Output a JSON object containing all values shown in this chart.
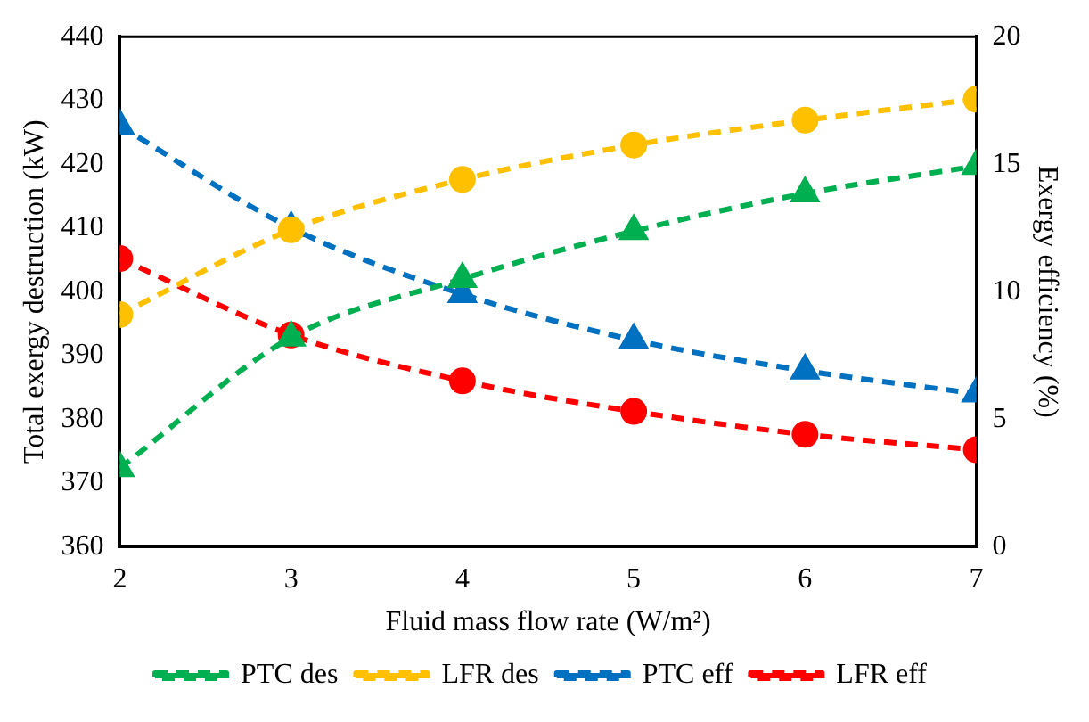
{
  "chart_data": {
    "type": "line",
    "xlabel": "Fluid mass flow rate (W/m²)",
    "ylabel": "Total exergy destruction (kW)",
    "y2label": "Exergy efficiency (%)",
    "x": [
      2,
      3,
      4,
      5,
      6,
      7
    ],
    "xlim": [
      2,
      7
    ],
    "xticks": [
      2,
      3,
      4,
      5,
      6,
      7
    ],
    "ylim": [
      360,
      440
    ],
    "yticks": [
      360,
      370,
      380,
      390,
      400,
      410,
      420,
      430,
      440
    ],
    "y2lim": [
      0,
      20
    ],
    "y2ticks": [
      0,
      5,
      10,
      15,
      20
    ],
    "grid": false,
    "legend": "bottom",
    "line_style": "dashed",
    "series": [
      {
        "name": "PTC des",
        "color": "#00b050",
        "marker": "triangle",
        "values": [
          372.3,
          392.8,
          402,
          409.5,
          415.4,
          419.7
        ]
      },
      {
        "name": "LFR des",
        "color": "#ffc000",
        "marker": "circle",
        "values": [
          396.4,
          409.7,
          417.6,
          423,
          426.9,
          430.2
        ]
      },
      {
        "name": "PTC eff",
        "color": "#0070c0",
        "marker": "triangle",
        "axis": "y2",
        "values": [
          16.5,
          12.5,
          9.9,
          8.1,
          6.9,
          6.0
        ]
      },
      {
        "name": "LFR eff",
        "color": "#ff0000",
        "marker": "circle",
        "axis": "y2",
        "values": [
          11.3,
          8.3,
          6.5,
          5.3,
          4.4,
          3.8
        ]
      }
    ]
  }
}
